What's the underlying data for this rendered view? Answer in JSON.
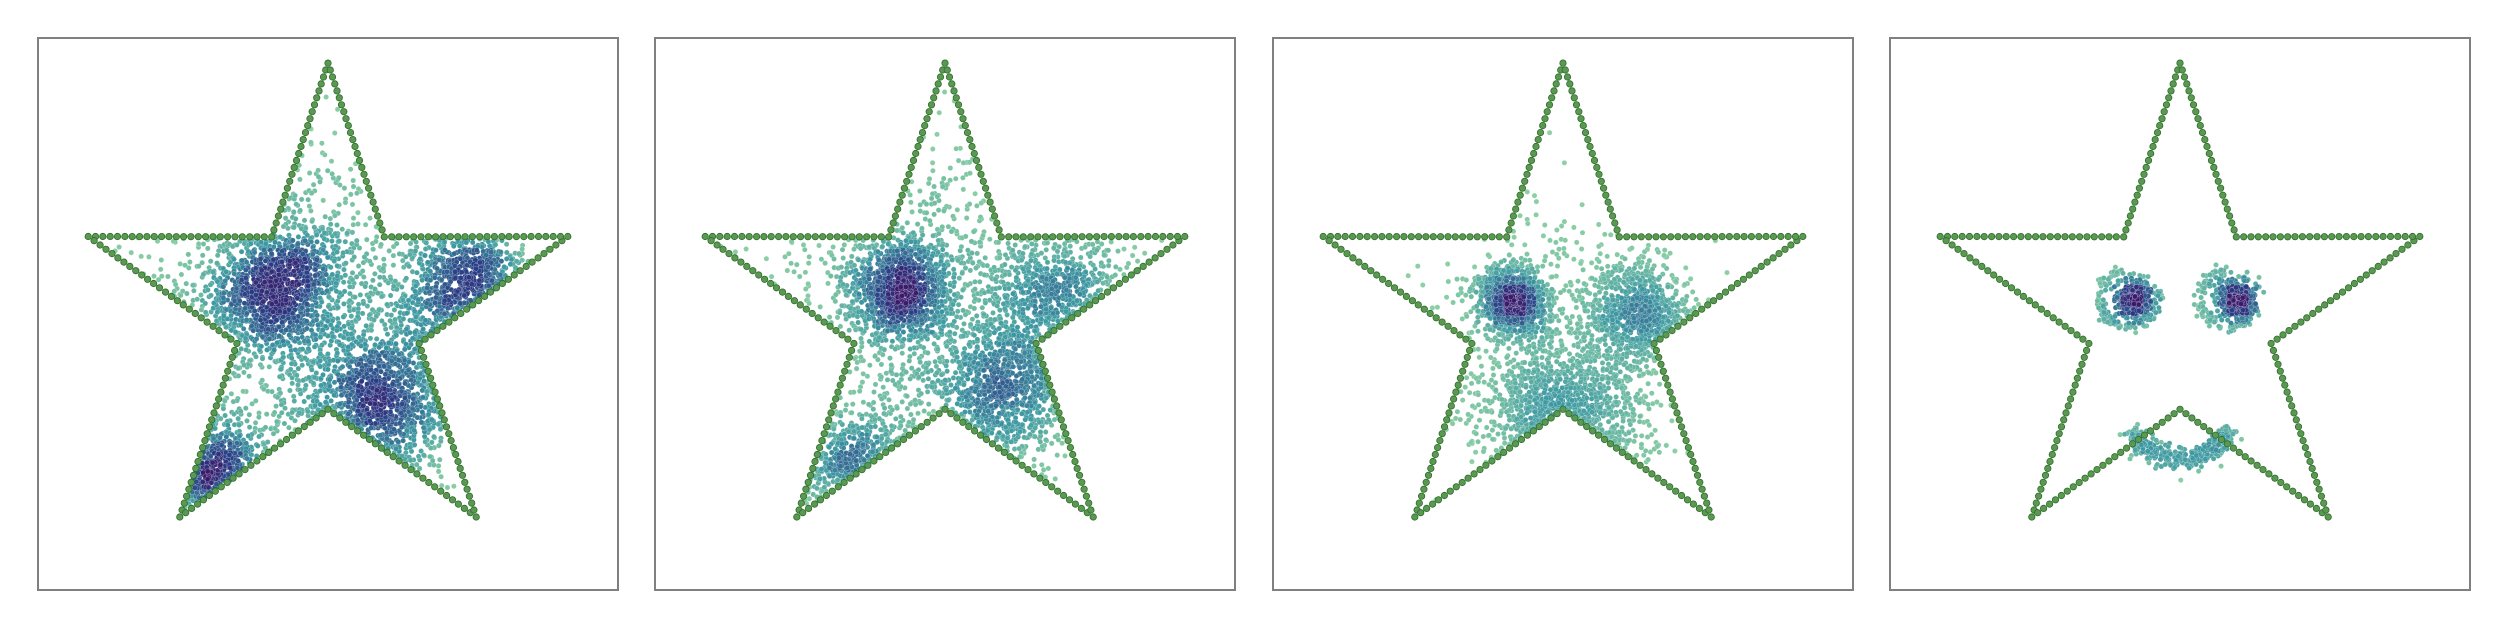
{
  "figure": {
    "panel_count": 4
  },
  "colors": {
    "frame": "#808080",
    "star_outline": "#5a9a50",
    "star_outline_dark": "#2f6b2c",
    "density_low": "#8fd1a4",
    "density_mid": "#3f9aa2",
    "density_high": "#2a3f86",
    "density_peak": "#3a1a6b",
    "background": "#ffffff"
  },
  "chart_data": [
    {
      "type": "scatter",
      "title": "",
      "xlabel": "",
      "ylabel": "",
      "grid": false,
      "ticks": false,
      "xlim": [
        -1.15,
        1.15
      ],
      "ylim": [
        -1.1,
        1.1
      ],
      "outline": {
        "shape": "five-pointed star",
        "outer_radius": 1.0,
        "inner_radius": 0.38,
        "point_count": 250
      },
      "clusters": [
        {
          "center": [
            -0.2,
            0.1
          ],
          "spread": 0.14,
          "points": 1200
        },
        {
          "center": [
            0.2,
            -0.35
          ],
          "spread": 0.15,
          "points": 1000
        },
        {
          "center": [
            0.55,
            0.1
          ],
          "spread": 0.14,
          "points": 700
        },
        {
          "center": [
            -0.45,
            -0.65
          ],
          "spread": 0.12,
          "points": 450
        },
        {
          "center": [
            0.0,
            0.0
          ],
          "spread": 0.45,
          "points": 900
        }
      ]
    },
    {
      "type": "scatter",
      "title": "",
      "xlabel": "",
      "ylabel": "",
      "grid": false,
      "ticks": false,
      "xlim": [
        -1.15,
        1.15
      ],
      "ylim": [
        -1.1,
        1.1
      ],
      "outline": {
        "shape": "five-pointed star",
        "outer_radius": 1.0,
        "inner_radius": 0.38,
        "point_count": 250
      },
      "clusters": [
        {
          "center": [
            -0.18,
            0.1
          ],
          "spread": 0.11,
          "points": 1100
        },
        {
          "center": [
            0.22,
            -0.3
          ],
          "spread": 0.14,
          "points": 900
        },
        {
          "center": [
            0.45,
            0.05
          ],
          "spread": 0.14,
          "points": 600
        },
        {
          "center": [
            -0.35,
            -0.6
          ],
          "spread": 0.12,
          "points": 400
        },
        {
          "center": [
            0.0,
            0.0
          ],
          "spread": 0.4,
          "points": 800
        }
      ]
    },
    {
      "type": "scatter",
      "title": "",
      "xlabel": "",
      "ylabel": "",
      "grid": false,
      "ticks": false,
      "xlim": [
        -1.15,
        1.15
      ],
      "ylim": [
        -1.1,
        1.1
      ],
      "outline": {
        "shape": "five-pointed star",
        "outer_radius": 1.0,
        "inner_radius": 0.38,
        "point_count": 250
      },
      "clusters": [
        {
          "center": [
            -0.2,
            0.05
          ],
          "spread": 0.07,
          "points": 900
        },
        {
          "center": [
            0.3,
            0.0
          ],
          "spread": 0.1,
          "points": 800
        },
        {
          "center": [
            0.0,
            -0.42
          ],
          "spread": 0.15,
          "points": 900
        },
        {
          "center": [
            0.0,
            -0.1
          ],
          "spread": 0.28,
          "points": 500
        }
      ]
    },
    {
      "type": "scatter",
      "title": "",
      "xlabel": "",
      "ylabel": "",
      "grid": false,
      "ticks": false,
      "xlim": [
        -1.15,
        1.15
      ],
      "ylim": [
        -1.1,
        1.1
      ],
      "outline": {
        "shape": "five-pointed star",
        "outer_radius": 1.0,
        "inner_radius": 0.38,
        "point_count": 250
      },
      "features": [
        {
          "kind": "eye",
          "center": [
            -0.18,
            0.06
          ],
          "core_spread": 0.04,
          "core_points": 350,
          "ring_radius": 0.11,
          "ring_points": 120
        },
        {
          "kind": "eye",
          "center": [
            0.22,
            0.06
          ],
          "core_spread": 0.04,
          "core_points": 350,
          "ring_radius": 0.11,
          "ring_points": 120
        },
        {
          "kind": "smile",
          "center": [
            0.0,
            -0.62
          ],
          "radius": 0.22,
          "arc_from_deg": 205,
          "arc_to_deg": 335,
          "points": 350
        }
      ]
    }
  ]
}
